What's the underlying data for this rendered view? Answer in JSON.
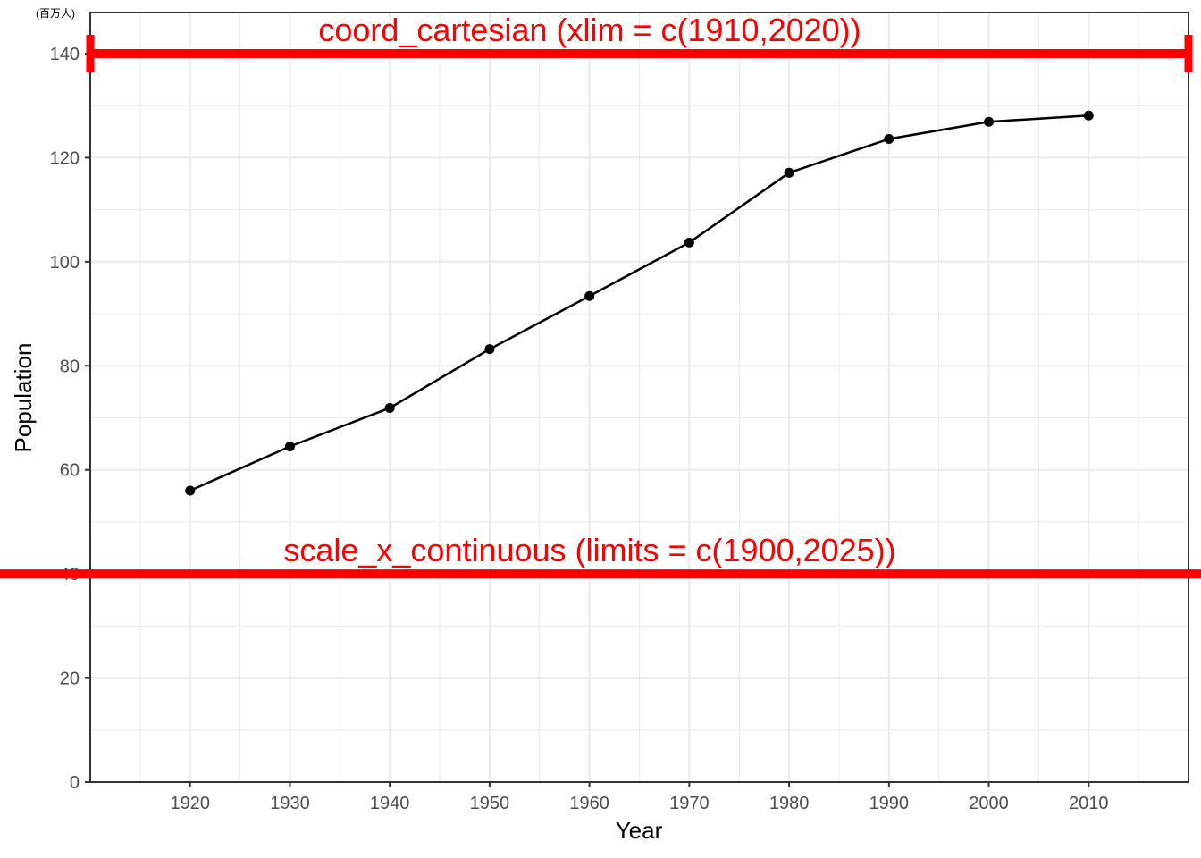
{
  "chart_data": {
    "type": "line",
    "x": [
      1920,
      1930,
      1940,
      1950,
      1960,
      1970,
      1980,
      1990,
      2000,
      2010
    ],
    "series": [
      {
        "values": [
          56.0,
          64.5,
          71.9,
          83.2,
          93.4,
          103.7,
          117.1,
          123.6,
          126.9,
          128.1
        ]
      }
    ],
    "xlabel": "Year",
    "ylabel": "Population",
    "y_unit_label": "(百万人)",
    "xlim": [
      1910,
      2020
    ],
    "ylim": [
      0,
      140
    ],
    "x_ticks": [
      1920,
      1930,
      1940,
      1950,
      1960,
      1970,
      1980,
      1990,
      2000,
      2010
    ],
    "y_ticks": [
      0,
      20,
      40,
      60,
      80,
      100,
      120,
      140
    ],
    "grid": true,
    "annotations": [
      {
        "text": "coord_cartesian (xlim = c(1910,2020))",
        "y": 140,
        "x_range": [
          1910,
          2020
        ]
      },
      {
        "text": "scale_x_continuous (limits = c(1900,2025))",
        "y": 40,
        "x_range": [
          1900,
          2025
        ]
      }
    ],
    "colors": {
      "line": "#000000",
      "annotation": "#ff0000",
      "grid": "#ebebeb",
      "panel_border": "#333333"
    }
  }
}
